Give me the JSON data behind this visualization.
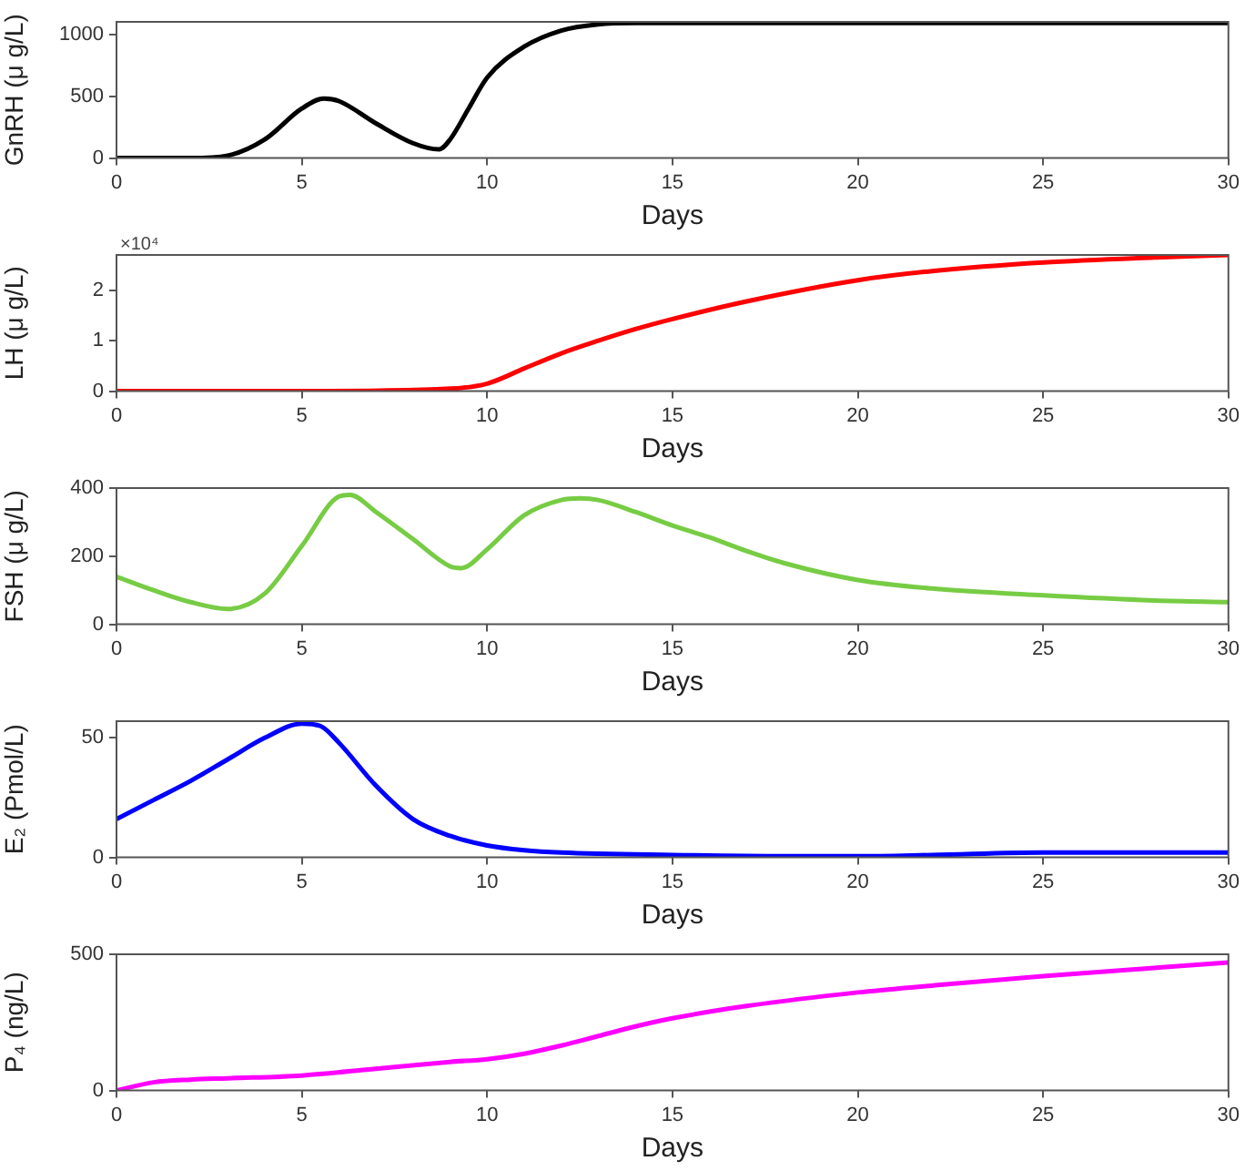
{
  "chart_data": [
    {
      "type": "line",
      "xlabel": "Days",
      "ylabel": "GnRH (μ g/L)",
      "xlim": [
        0,
        30
      ],
      "xticks": [
        0,
        5,
        10,
        15,
        20,
        25,
        30
      ],
      "ylim": [
        0,
        1100
      ],
      "yticks": [
        0,
        500,
        1000
      ],
      "marker": "none",
      "line_style": "solid",
      "grid": false,
      "legend": false,
      "series": [
        {
          "color": "#000000",
          "x": [
            0,
            1,
            2,
            3,
            4,
            5,
            5.6,
            6,
            7,
            8,
            8.7,
            9,
            9.5,
            10,
            11,
            12,
            13,
            14,
            15,
            20,
            25,
            30
          ],
          "values": [
            0,
            0,
            0,
            20,
            150,
            400,
            480,
            460,
            280,
            120,
            70,
            150,
            400,
            650,
            900,
            1030,
            1080,
            1090,
            1090,
            1090,
            1090,
            1090
          ]
        }
      ]
    },
    {
      "type": "line",
      "xlabel": "Days",
      "ylabel": "LH (μ g/L)",
      "annotations": [
        "×10⁴"
      ],
      "xlim": [
        0,
        30
      ],
      "xticks": [
        0,
        5,
        10,
        15,
        20,
        25,
        30
      ],
      "ylim": [
        0,
        2.7
      ],
      "yticks": [
        0,
        1,
        2
      ],
      "marker": "none",
      "line_style": "solid",
      "grid": false,
      "legend": false,
      "series": [
        {
          "color": "#ff0000",
          "x": [
            0,
            5,
            9,
            10,
            11,
            12,
            13,
            14,
            15,
            17,
            20,
            22,
            25,
            28,
            30
          ],
          "values": [
            0,
            0,
            0.05,
            0.15,
            0.45,
            0.75,
            1,
            1.23,
            1.43,
            1.78,
            2.2,
            2.38,
            2.55,
            2.65,
            2.7
          ]
        }
      ]
    },
    {
      "type": "line",
      "xlabel": "Days",
      "ylabel": "FSH (μ g/L)",
      "xlim": [
        0,
        30
      ],
      "xticks": [
        0,
        5,
        10,
        15,
        20,
        25,
        30
      ],
      "ylim": [
        0,
        400
      ],
      "yticks": [
        0,
        200,
        400
      ],
      "marker": "none",
      "line_style": "solid",
      "grid": false,
      "legend": false,
      "series": [
        {
          "color": "#77cc44",
          "x": [
            0,
            1,
            2,
            3,
            4,
            5,
            6,
            6.3,
            7,
            8,
            9,
            9.3,
            10,
            11,
            12,
            12.5,
            13,
            14,
            15,
            16,
            17,
            18,
            20,
            22,
            25,
            28,
            30
          ],
          "values": [
            140,
            100,
            65,
            45,
            90,
            230,
            375,
            380,
            330,
            250,
            170,
            165,
            220,
            320,
            365,
            370,
            365,
            330,
            290,
            255,
            215,
            180,
            130,
            105,
            85,
            70,
            65
          ]
        }
      ]
    },
    {
      "type": "line",
      "xlabel": "Days",
      "ylabel": "E₂ (Pmol/L)",
      "xlim": [
        0,
        30
      ],
      "xticks": [
        0,
        5,
        10,
        15,
        20,
        25,
        30
      ],
      "ylim": [
        0,
        57
      ],
      "yticks": [
        0,
        50
      ],
      "marker": "none",
      "line_style": "solid",
      "grid": false,
      "legend": false,
      "series": [
        {
          "color": "#0000ff",
          "x": [
            0,
            1,
            2,
            3,
            4,
            5,
            5.5,
            6,
            7,
            8,
            9,
            10,
            11,
            12,
            15,
            18,
            20,
            22,
            25,
            30
          ],
          "values": [
            16,
            24,
            32,
            41,
            50,
            56,
            55,
            48,
            30,
            16,
            9,
            5,
            3,
            2,
            1,
            0.5,
            0.5,
            1,
            2,
            2
          ]
        }
      ]
    },
    {
      "type": "line",
      "xlabel": "Days",
      "ylabel": "P₄ (ng/L)",
      "xlim": [
        0,
        30
      ],
      "xticks": [
        0,
        5,
        10,
        15,
        20,
        25,
        30
      ],
      "ylim": [
        0,
        500
      ],
      "yticks": [
        0,
        500
      ],
      "marker": "none",
      "line_style": "solid",
      "grid": false,
      "legend": false,
      "series": [
        {
          "color": "#ff00ff",
          "x": [
            0,
            1,
            2,
            3,
            5,
            7,
            9,
            10,
            11,
            12,
            13,
            14,
            15,
            17,
            20,
            22,
            25,
            28,
            30
          ],
          "values": [
            0,
            30,
            40,
            45,
            55,
            80,
            105,
            115,
            135,
            165,
            200,
            235,
            265,
            310,
            360,
            385,
            420,
            450,
            470
          ]
        }
      ]
    }
  ]
}
